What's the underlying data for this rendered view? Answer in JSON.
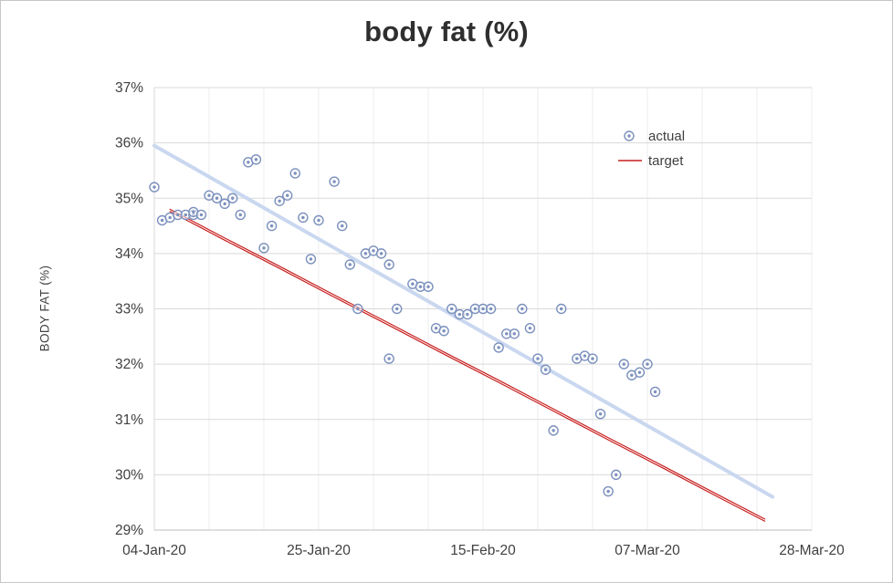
{
  "chart_data": {
    "type": "scatter",
    "title": "body fat (%)",
    "xlabel": "",
    "ylabel": "BODY FAT (%)",
    "x_unit": "days since 04-Jan-20",
    "xlim": [
      0,
      84
    ],
    "ylim": [
      29,
      37
    ],
    "grid": {
      "h_step": 1,
      "v_step_days": 7,
      "visible": true
    },
    "y_ticks": [
      {
        "value": 37,
        "label": "37%"
      },
      {
        "value": 36,
        "label": "36%"
      },
      {
        "value": 35,
        "label": "35%"
      },
      {
        "value": 34,
        "label": "34%"
      },
      {
        "value": 33,
        "label": "33%"
      },
      {
        "value": 32,
        "label": "32%"
      },
      {
        "value": 31,
        "label": "31%"
      },
      {
        "value": 30,
        "label": "30%"
      },
      {
        "value": 29,
        "label": "29%"
      }
    ],
    "x_ticks": [
      {
        "day": 0,
        "label": "04-Jan-20"
      },
      {
        "day": 21,
        "label": "25-Jan-20"
      },
      {
        "day": 42,
        "label": "15-Feb-20"
      },
      {
        "day": 63,
        "label": "07-Mar-20"
      },
      {
        "day": 84,
        "label": "28-Mar-20"
      }
    ],
    "legend": {
      "position": "inside-top-right",
      "items": [
        "actual",
        "target"
      ]
    },
    "series": [
      {
        "name": "trendline",
        "kind": "line",
        "color": "#c9d7ef",
        "width": 4,
        "in_legend": false,
        "points": [
          [
            0,
            35.95
          ],
          [
            79,
            29.6
          ]
        ]
      },
      {
        "name": "target",
        "kind": "line",
        "color": "#c81e1e",
        "width": 1.2,
        "double": true,
        "in_legend": true,
        "points": [
          [
            2,
            34.8
          ],
          [
            9,
            34.28
          ],
          [
            16,
            33.77
          ],
          [
            23,
            33.25
          ],
          [
            30,
            32.74
          ],
          [
            37,
            32.22
          ],
          [
            44,
            31.71
          ],
          [
            51,
            31.19
          ],
          [
            58,
            30.67
          ],
          [
            65,
            30.16
          ],
          [
            72,
            29.64
          ],
          [
            78,
            29.2
          ]
        ]
      },
      {
        "name": "actual",
        "kind": "points",
        "marker": "donut-circle",
        "color": "#7b90bd",
        "in_legend": true,
        "points": [
          [
            0,
            35.2
          ],
          [
            1,
            34.6
          ],
          [
            2,
            34.65
          ],
          [
            3,
            34.7
          ],
          [
            4,
            34.7
          ],
          [
            5,
            34.7
          ],
          [
            5,
            34.75
          ],
          [
            6,
            34.7
          ],
          [
            7,
            35.05
          ],
          [
            8,
            35.0
          ],
          [
            9,
            34.9
          ],
          [
            10,
            35.0
          ],
          [
            11,
            34.7
          ],
          [
            12,
            35.65
          ],
          [
            13,
            35.7
          ],
          [
            14,
            34.1
          ],
          [
            15,
            34.5
          ],
          [
            16,
            34.95
          ],
          [
            17,
            35.05
          ],
          [
            18,
            35.45
          ],
          [
            19,
            34.65
          ],
          [
            20,
            33.9
          ],
          [
            21,
            34.6
          ],
          [
            23,
            35.3
          ],
          [
            24,
            34.5
          ],
          [
            25,
            33.8
          ],
          [
            26,
            33.0
          ],
          [
            27,
            34.0
          ],
          [
            28,
            34.05
          ],
          [
            29,
            34.0
          ],
          [
            30,
            32.1
          ],
          [
            30,
            33.8
          ],
          [
            31,
            33.0
          ],
          [
            33,
            33.45
          ],
          [
            34,
            33.4
          ],
          [
            35,
            33.4
          ],
          [
            36,
            32.65
          ],
          [
            37,
            32.6
          ],
          [
            38,
            33.0
          ],
          [
            39,
            32.9
          ],
          [
            40,
            32.9
          ],
          [
            41,
            33.0
          ],
          [
            42,
            33.0
          ],
          [
            43,
            33.0
          ],
          [
            44,
            32.3
          ],
          [
            45,
            32.55
          ],
          [
            46,
            32.55
          ],
          [
            47,
            33.0
          ],
          [
            48,
            32.65
          ],
          [
            49,
            32.1
          ],
          [
            50,
            31.9
          ],
          [
            51,
            30.8
          ],
          [
            52,
            33.0
          ],
          [
            54,
            32.1
          ],
          [
            55,
            32.15
          ],
          [
            56,
            32.1
          ],
          [
            57,
            31.1
          ],
          [
            58,
            29.7
          ],
          [
            59,
            30.0
          ],
          [
            60,
            32.0
          ],
          [
            61,
            31.8
          ],
          [
            62,
            31.85
          ],
          [
            63,
            32.0
          ],
          [
            64,
            31.5
          ]
        ]
      }
    ],
    "colors": {
      "grid": "#d9d9d9",
      "grid_minor": "#ededf3",
      "axis": "#bfbfbf",
      "tick_text": "#404040",
      "title_text": "#2f2f2f",
      "legend_text": "#404040"
    }
  }
}
